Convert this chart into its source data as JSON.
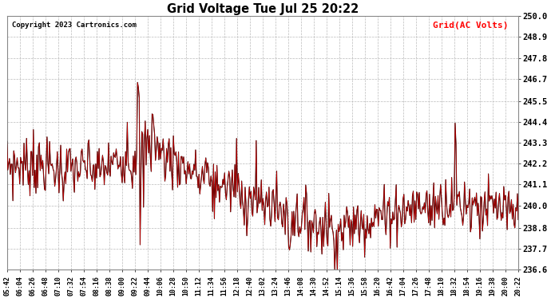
{
  "title": "Grid Voltage Tue Jul 25 20:22",
  "copyright": "Copyright 2023 Cartronics.com",
  "legend_label": "Grid(AC Volts)",
  "legend_color": "#ff0000",
  "background_color": "#ffffff",
  "plot_bg_color": "#ffffff",
  "grid_color": "#bbbbbb",
  "line_color_red": "#cc0000",
  "line_color_black": "#000000",
  "ylim": [
    236.6,
    250.0
  ],
  "yticks": [
    236.6,
    237.7,
    238.8,
    240.0,
    241.1,
    242.2,
    243.3,
    244.4,
    245.5,
    246.7,
    247.8,
    248.9,
    250.0
  ],
  "xtick_labels": [
    "05:42",
    "06:04",
    "06:26",
    "06:48",
    "07:10",
    "07:32",
    "07:54",
    "08:16",
    "08:38",
    "09:00",
    "09:22",
    "09:44",
    "10:06",
    "10:28",
    "10:50",
    "11:12",
    "11:34",
    "11:56",
    "12:18",
    "12:40",
    "13:02",
    "13:24",
    "13:46",
    "14:08",
    "14:30",
    "14:52",
    "15:14",
    "15:36",
    "15:58",
    "16:20",
    "16:42",
    "17:04",
    "17:26",
    "17:48",
    "18:10",
    "18:32",
    "18:54",
    "19:16",
    "19:38",
    "20:00",
    "20:22"
  ],
  "num_points": 600,
  "seed": 7
}
